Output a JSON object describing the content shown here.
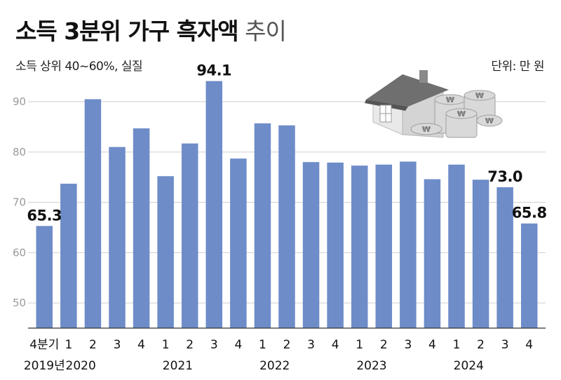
{
  "title_main": "소득 3분위 가구 흑자액",
  "title_suffix": "추이",
  "subtitle": "소득 상위 40~60%, 실질",
  "unit": "단위: 만 원",
  "chart_data": {
    "type": "bar",
    "color": "#6e8cc8",
    "ylim": [
      45,
      96
    ],
    "yticks": [
      50,
      60,
      70,
      80,
      90
    ],
    "quarter_labels": [
      "4분기",
      "1",
      "2",
      "3",
      "4",
      "1",
      "2",
      "3",
      "4",
      "1",
      "2",
      "3",
      "4",
      "1",
      "2",
      "3",
      "4",
      "1",
      "2",
      "3",
      "4"
    ],
    "year_labels": [
      {
        "label": "2019년",
        "index": 0
      },
      {
        "label": "2020",
        "index": 1
      },
      {
        "label": "2021",
        "index": 5
      },
      {
        "label": "2022",
        "index": 9
      },
      {
        "label": "2023",
        "index": 13
      },
      {
        "label": "2024",
        "index": 17
      }
    ],
    "values": [
      65.3,
      73.7,
      90.5,
      81.0,
      84.7,
      75.2,
      81.7,
      94.1,
      78.7,
      85.7,
      85.3,
      78.0,
      77.9,
      77.3,
      77.5,
      78.1,
      74.6,
      77.5,
      74.5,
      73.0,
      65.8
    ],
    "data_labels": [
      {
        "index": 0,
        "text": "65.3"
      },
      {
        "index": 7,
        "text": "94.1"
      },
      {
        "index": 19,
        "text": "73.0"
      },
      {
        "index": 20,
        "text": "65.8"
      }
    ]
  }
}
